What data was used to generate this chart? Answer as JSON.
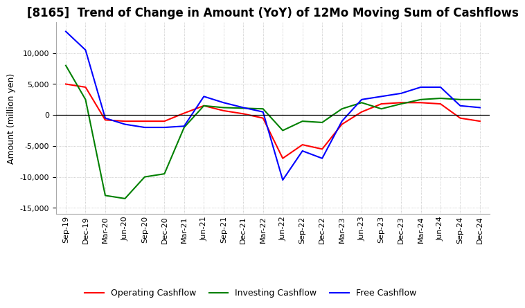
{
  "title": "[8165]  Trend of Change in Amount (YoY) of 12Mo Moving Sum of Cashflows",
  "ylabel": "Amount (million yen)",
  "x_labels": [
    "Sep-19",
    "Dec-19",
    "Mar-20",
    "Jun-20",
    "Sep-20",
    "Dec-20",
    "Mar-21",
    "Jun-21",
    "Sep-21",
    "Dec-21",
    "Mar-22",
    "Jun-22",
    "Sep-22",
    "Dec-22",
    "Mar-23",
    "Jun-23",
    "Sep-23",
    "Dec-23",
    "Mar-24",
    "Jun-24",
    "Sep-24",
    "Dec-24"
  ],
  "operating": [
    5000,
    4500,
    -800,
    -1000,
    -1000,
    -1000,
    300,
    1500,
    700,
    200,
    -500,
    -7000,
    -4800,
    -5500,
    -1500,
    500,
    1800,
    2000,
    2000,
    1800,
    -500,
    -1000
  ],
  "investing": [
    8000,
    2500,
    -13000,
    -13500,
    -10000,
    -9500,
    -2000,
    1500,
    1200,
    1100,
    1000,
    -2500,
    -1000,
    -1200,
    1000,
    2000,
    1000,
    1800,
    2500,
    2700,
    2500,
    2500
  ],
  "free": [
    13500,
    10500,
    -500,
    -1500,
    -2000,
    -2000,
    -1800,
    3000,
    2000,
    1200,
    500,
    -10500,
    -5800,
    -7000,
    -1000,
    2500,
    3000,
    3500,
    4500,
    4500,
    1500,
    1200
  ],
  "ylim": [
    -16000,
    15000
  ],
  "yticks": [
    -15000,
    -10000,
    -5000,
    0,
    5000,
    10000
  ],
  "operating_color": "#ff0000",
  "investing_color": "#008000",
  "free_color": "#0000ff",
  "background_color": "#ffffff",
  "grid_color": "#aaaaaa",
  "title_fontsize": 12,
  "label_fontsize": 9,
  "tick_fontsize": 8
}
